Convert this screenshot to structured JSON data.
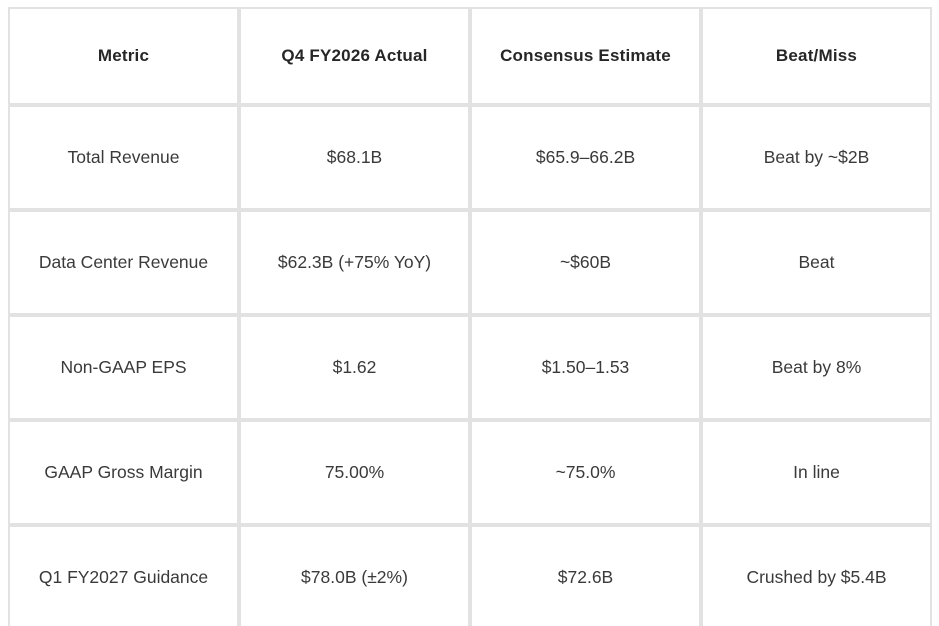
{
  "chart_data": {
    "type": "table",
    "columns": [
      "Metric",
      "Q4 FY2026 Actual",
      "Consensus Estimate",
      "Beat/Miss"
    ],
    "rows": [
      [
        "Total Revenue",
        "$68.1B",
        "$65.9–66.2B",
        "Beat by ~$2B"
      ],
      [
        "Data Center Revenue",
        "$62.3B (+75% YoY)",
        "~$60B",
        "Beat"
      ],
      [
        "Non-GAAP EPS",
        "$1.62",
        "$1.50–1.53",
        "Beat by 8%"
      ],
      [
        "GAAP Gross Margin",
        "75.00%",
        "~75.0%",
        "In line"
      ],
      [
        "Q1 FY2027 Guidance",
        "$78.0B (±2%)",
        "$72.6B",
        "Crushed by $5.4B"
      ]
    ],
    "layout": {
      "header_bold": true,
      "grid": "on",
      "border_color": "#e2e2e2",
      "header_text_color": "#262626",
      "body_text_color": "#3a3a3a",
      "background_color": "#ffffff"
    }
  }
}
